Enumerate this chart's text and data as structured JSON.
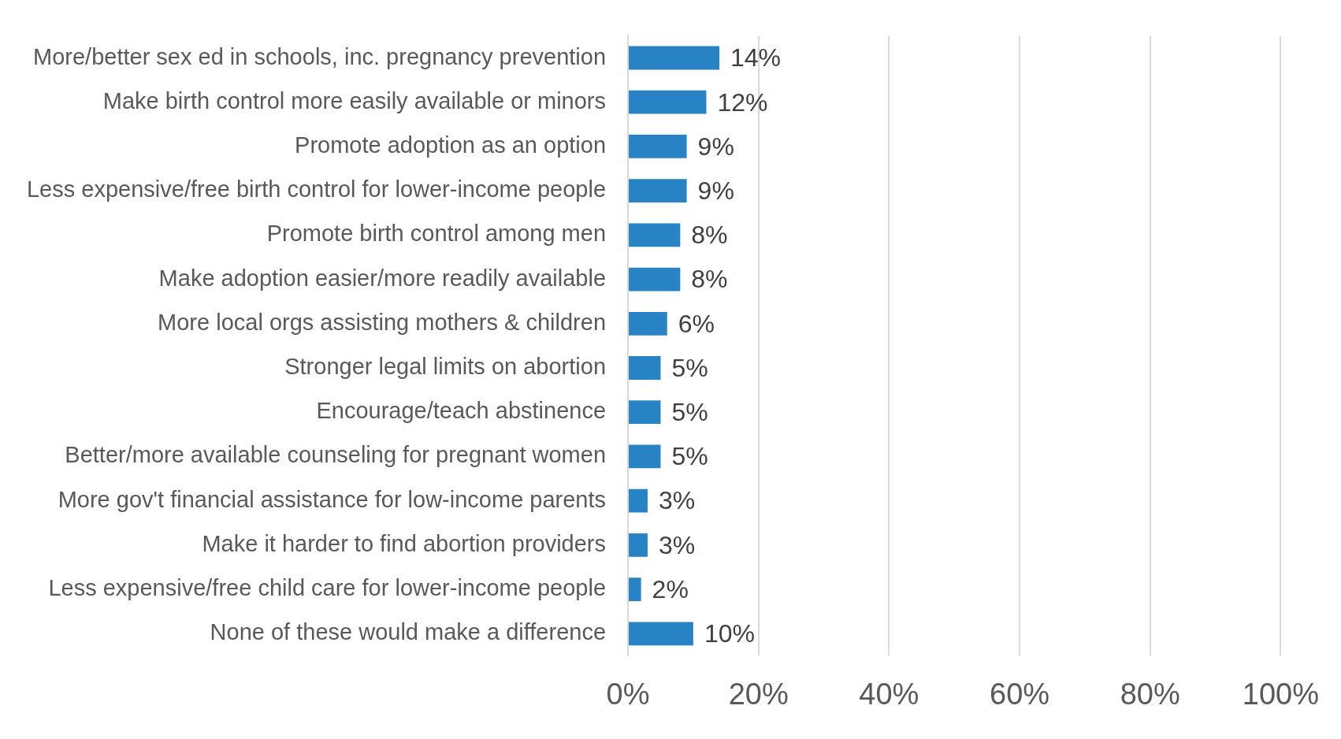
{
  "chart_data": {
    "type": "bar",
    "orientation": "horizontal",
    "categories": [
      "More/better sex ed in schools, inc. pregnancy prevention",
      "Make birth control more easily available or minors",
      "Promote adoption as an option",
      "Less expensive/free birth control for lower-income people",
      "Promote birth control among men",
      "Make adoption easier/more readily available",
      "More local orgs assisting mothers & children",
      "Stronger legal limits on abortion",
      "Encourage/teach abstinence",
      "Better/more available counseling for pregnant women",
      "More gov't financial assistance for low-income parents",
      "Make it harder to find abortion providers",
      "Less expensive/free child care for lower-income people",
      "None of these would make a difference"
    ],
    "values": [
      14,
      12,
      9,
      9,
      8,
      8,
      6,
      5,
      5,
      5,
      3,
      3,
      2,
      10
    ],
    "value_labels": [
      "14%",
      "12%",
      "9%",
      "9%",
      "8%",
      "8%",
      "6%",
      "5%",
      "5%",
      "5%",
      "3%",
      "3%",
      "2%",
      "10%"
    ],
    "color": "#2783c3",
    "xlim": [
      0,
      100
    ],
    "xticks": [
      {
        "value": 0,
        "label": "0%"
      },
      {
        "value": 20,
        "label": "20%"
      },
      {
        "value": 40,
        "label": "40%"
      },
      {
        "value": 60,
        "label": "60%"
      },
      {
        "value": 80,
        "label": "80%"
      },
      {
        "value": 100,
        "label": "100%"
      }
    ],
    "grid": "x",
    "legend": false
  }
}
